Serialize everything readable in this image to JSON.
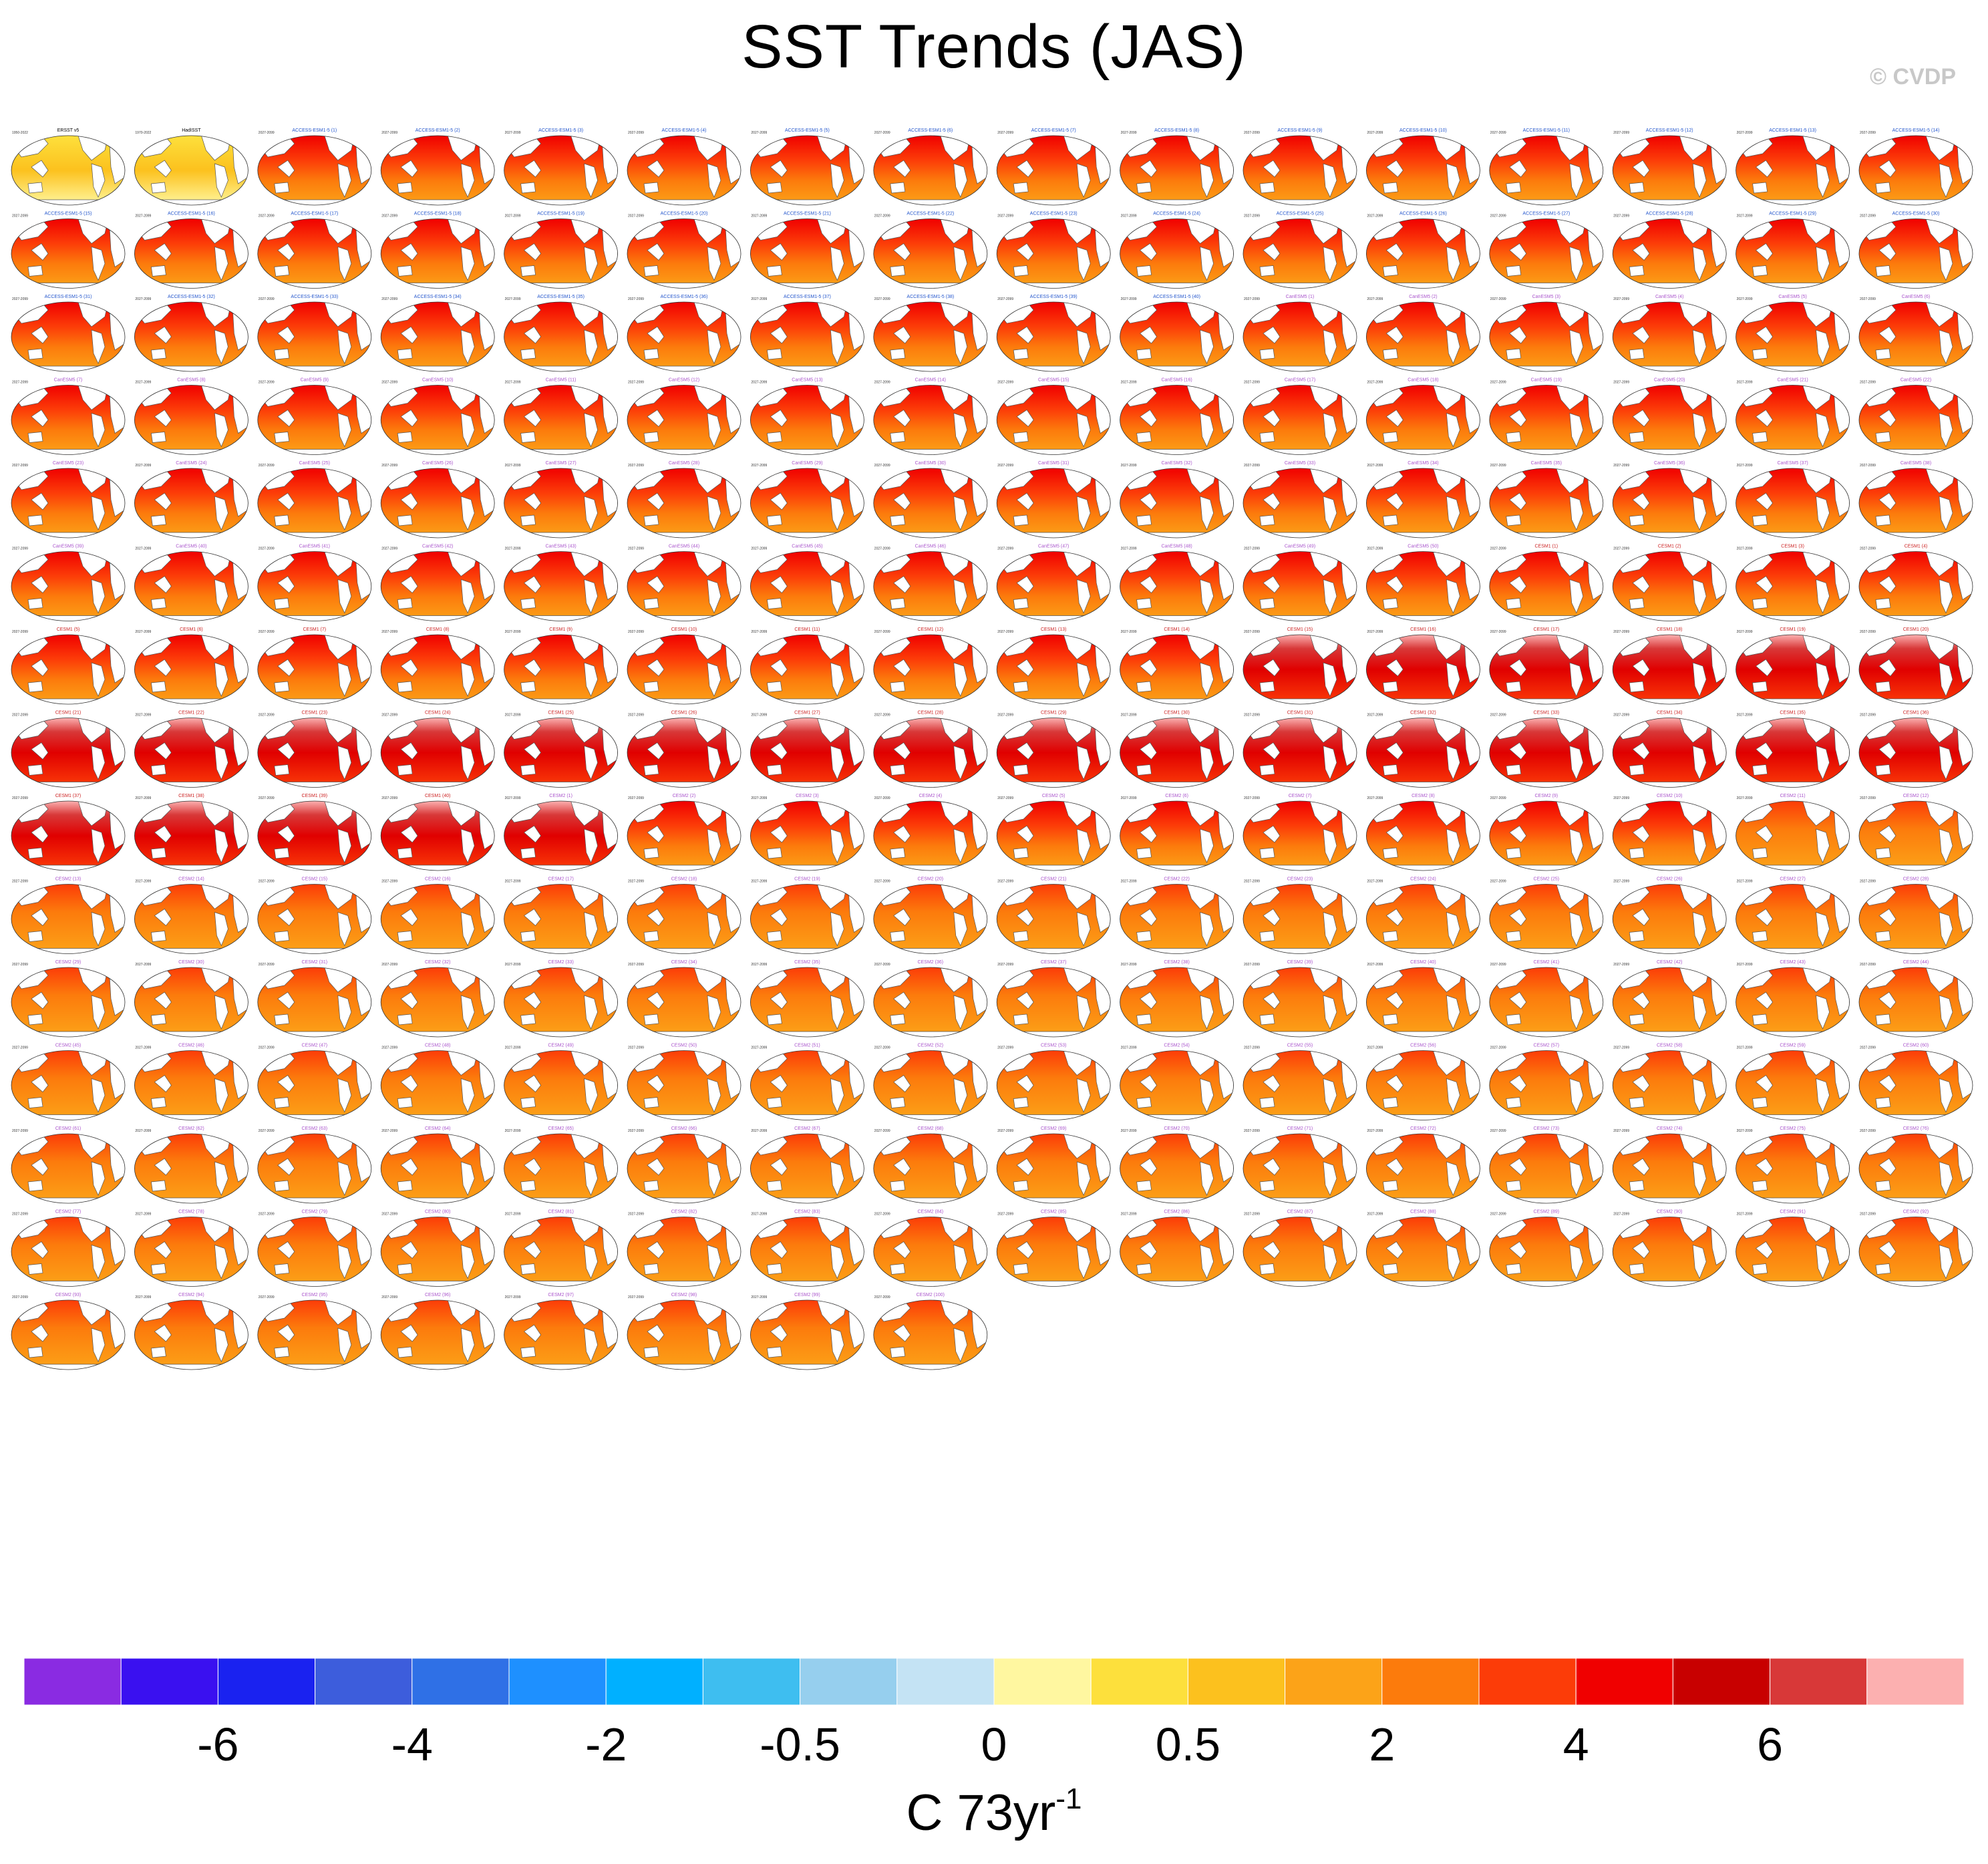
{
  "title": "SST Trends (JAS)",
  "watermark": "© CVDP",
  "units": {
    "base": "C 73yr",
    "exponent": "-1"
  },
  "colors": {
    "land": "#ffffff",
    "coast": "#555555",
    "panel_border": "#333333",
    "obs_title": "#000000",
    "access_title": "#2255cc",
    "cesm1_title": "#cc2222",
    "cesm2_title": "#aa55cc"
  },
  "colorbar": {
    "colors": [
      "#8a2be2",
      "#3a10f0",
      "#1a22f0",
      "#3d5ddc",
      "#2f70e6",
      "#1e90ff",
      "#00b0ff",
      "#3ebef0",
      "#96cfee",
      "#c4e3f4",
      "#fff7a0",
      "#fde03c",
      "#fcc11e",
      "#fca318",
      "#fc7b0c",
      "#fc3c08",
      "#f00000",
      "#c80000",
      "#d83838",
      "#fcb0b0"
    ],
    "labels": [
      "-6",
      "-4",
      "-2",
      "-0.5",
      "0",
      "0.5",
      "2",
      "4",
      "6"
    ]
  },
  "chart_data": {
    "type": "heatmap",
    "description_kind": "map-panel grid",
    "variable": "SST trend",
    "season": "JAS",
    "panels": {
      "observations": [
        {
          "title": "ERSST v5",
          "period": "1950-2022"
        },
        {
          "title": "HadISST",
          "period": "1970-2022"
        }
      ],
      "model_period": "2027-2099",
      "groups": [
        {
          "model": "ACCESS-ESM1-5",
          "count": 40,
          "color_key": "access_title"
        },
        {
          "model": "CanESM5",
          "count": 50,
          "color_key": "cesm2_title"
        },
        {
          "model": "CESM1",
          "count": 40,
          "color_key": "cesm1_title"
        },
        {
          "model": "CESM2",
          "count": 100,
          "color_key": "cesm2_title"
        }
      ]
    },
    "colorbar_ticks": [
      -6,
      -4,
      -2,
      -0.5,
      0,
      0.5,
      2,
      4,
      6
    ],
    "units": "C 73yr-1"
  }
}
